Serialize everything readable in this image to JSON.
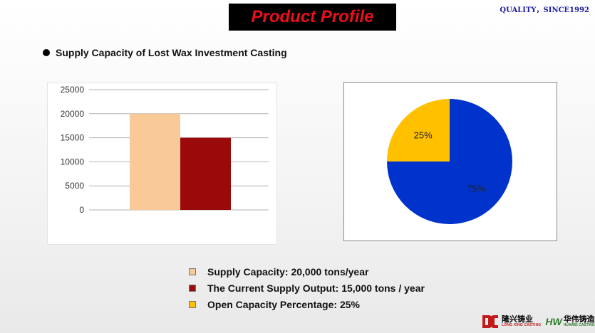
{
  "header": {
    "title": "Product Profile",
    "tagline": "QUALITY，SINCE1992"
  },
  "section": {
    "heading": "Supply Capacity of Lost Wax Investment Casting"
  },
  "legend": [
    {
      "label": "Supply Capacity:   20,000 tons/year",
      "color": "#f9c997"
    },
    {
      "label": "The Current Supply Output:  15,000 tons / year",
      "color": "#9b0a0a"
    },
    {
      "label": "Open Capacity Percentage: 25%",
      "color": "#ffc000"
    }
  ],
  "logos": {
    "left": {
      "cn": "隆兴铸业",
      "en": "LONG XING CASTING"
    },
    "right": {
      "mark": "HW",
      "cn": "华伟铸造",
      "en": "HUAWEI CASTING"
    }
  },
  "chart_data": [
    {
      "type": "bar",
      "categories": [
        "Supply Capacity",
        "The Current Supply Output"
      ],
      "values": [
        20000,
        15000
      ],
      "colors": [
        "#f9c997",
        "#9b0a0a"
      ],
      "ylim": [
        0,
        25000
      ],
      "yticks": [
        "0",
        "5000",
        "10000",
        "15000",
        "20000",
        "25000"
      ],
      "grid": true
    },
    {
      "type": "pie",
      "slices": [
        {
          "label": "75%",
          "value": 75,
          "color": "#0033cc"
        },
        {
          "label": "25%",
          "value": 25,
          "color": "#ffc000"
        }
      ]
    }
  ]
}
